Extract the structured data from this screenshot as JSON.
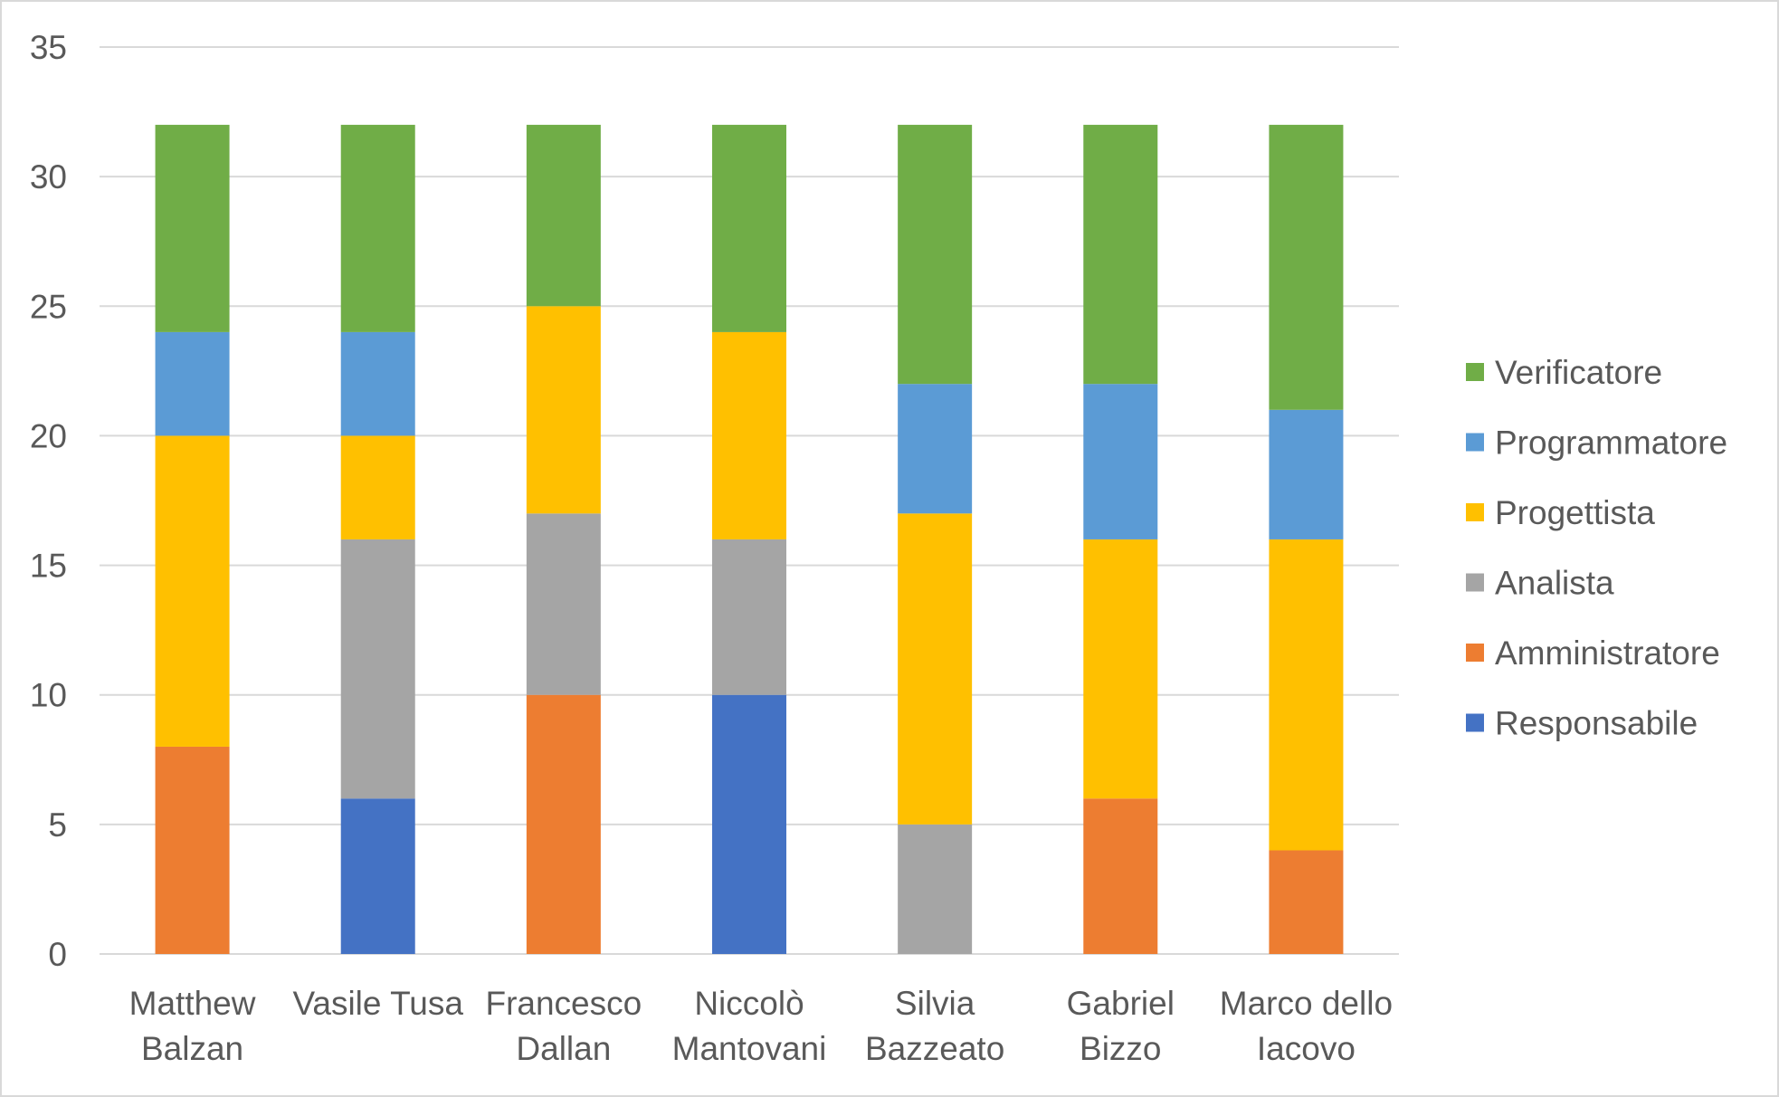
{
  "chart_data": {
    "type": "bar",
    "stacked": true,
    "title": "",
    "xlabel": "",
    "ylabel": "",
    "ylim": [
      0,
      35
    ],
    "y_ticks": [
      0,
      5,
      10,
      15,
      20,
      25,
      30,
      35
    ],
    "grid": true,
    "legend_position": "right",
    "categories": [
      [
        "Matthew",
        "Balzan"
      ],
      [
        "Vasile Tusa"
      ],
      [
        "Francesco",
        "Dallan"
      ],
      [
        "Niccolò",
        "Mantovani"
      ],
      [
        "Silvia",
        "Bazzeato"
      ],
      [
        "Gabriel",
        "Bizzo"
      ],
      [
        "Marco dello",
        "Iacovo"
      ]
    ],
    "series": [
      {
        "name": "Responsabile",
        "color": "#4472c4",
        "values": [
          0,
          6,
          0,
          10,
          0,
          0,
          0
        ]
      },
      {
        "name": "Amministratore",
        "color": "#ed7d31",
        "values": [
          8,
          0,
          10,
          0,
          0,
          6,
          4
        ]
      },
      {
        "name": "Analista",
        "color": "#a5a5a5",
        "values": [
          0,
          10,
          7,
          6,
          5,
          0,
          0
        ]
      },
      {
        "name": "Progettista",
        "color": "#ffc000",
        "values": [
          12,
          4,
          8,
          8,
          12,
          10,
          12
        ]
      },
      {
        "name": "Programmatore",
        "color": "#5b9bd5",
        "values": [
          4,
          4,
          0,
          0,
          5,
          6,
          5
        ]
      },
      {
        "name": "Verificatore",
        "color": "#70ad47",
        "values": [
          8,
          8,
          7,
          8,
          10,
          10,
          11
        ]
      }
    ]
  }
}
